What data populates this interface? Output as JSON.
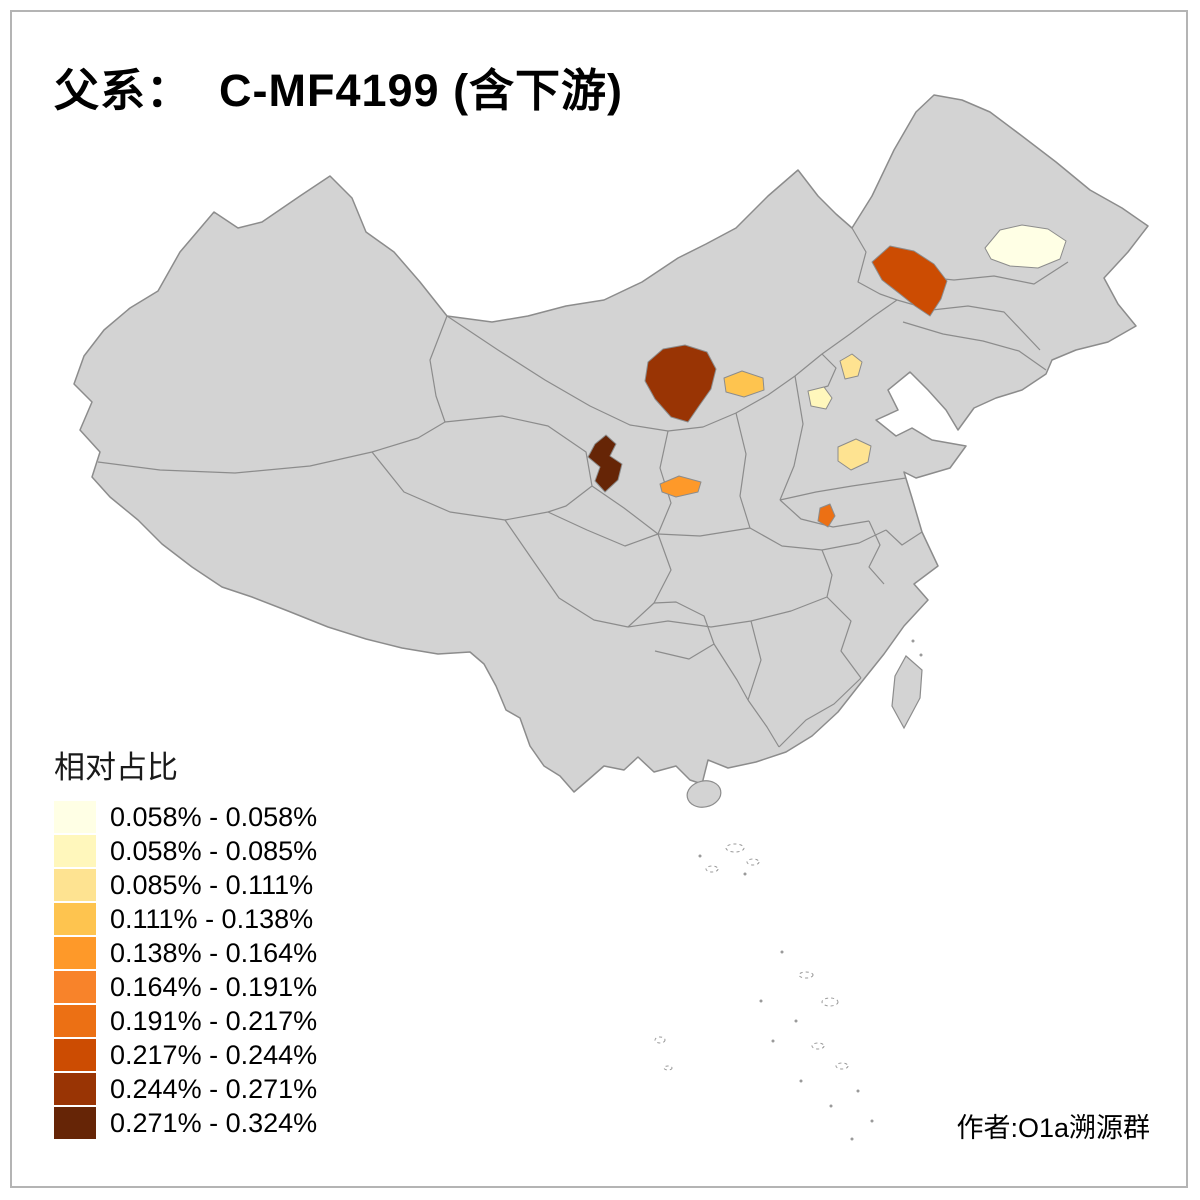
{
  "title": "父系：  C-MF4199 (含下游)",
  "attribution": "作者:O1a溯源群",
  "legend": {
    "title": "相对占比",
    "items": [
      {
        "label": "0.058% - 0.058%",
        "color": "#FFFFE5"
      },
      {
        "label": "0.058% - 0.085%",
        "color": "#FFF7BC"
      },
      {
        "label": "0.085% - 0.111%",
        "color": "#FEE391"
      },
      {
        "label": "0.111% - 0.138%",
        "color": "#FEC44F"
      },
      {
        "label": "0.138% - 0.164%",
        "color": "#FE9929"
      },
      {
        "label": "0.164% - 0.191%",
        "color": "#F8832A"
      },
      {
        "label": "0.191% - 0.217%",
        "color": "#EC7014"
      },
      {
        "label": "0.217% - 0.244%",
        "color": "#CC4C02"
      },
      {
        "label": "0.244% - 0.271%",
        "color": "#993404"
      },
      {
        "label": "0.271% - 0.324%",
        "color": "#662506"
      }
    ]
  },
  "map": {
    "base_fill": "#D3D3D3",
    "border_color": "#8C8C8C",
    "background": "#FFFFFF",
    "regions": [
      {
        "name": "region-west-heilongjiang",
        "range": "0.058% - 0.058%",
        "color": "#FFFFE5"
      },
      {
        "name": "region-east-inner-mongolia",
        "range": "0.217% - 0.244%",
        "color": "#CC4C02"
      },
      {
        "name": "region-central-inner-mongolia",
        "range": "0.244% - 0.271%",
        "color": "#993404"
      },
      {
        "name": "region-north-shanxi",
        "range": "0.111% - 0.138%",
        "color": "#FEC44F"
      },
      {
        "name": "region-beijing-area",
        "range": "0.085% - 0.111%",
        "color": "#FEE391"
      },
      {
        "name": "region-central-hebei",
        "range": "0.058% - 0.085%",
        "color": "#FFF7BC"
      },
      {
        "name": "region-central-shandong",
        "range": "0.085% - 0.111%",
        "color": "#FEE391"
      },
      {
        "name": "region-southeast-gansu",
        "range": "0.271% - 0.324%",
        "color": "#662506"
      },
      {
        "name": "region-west-shaanxi",
        "range": "0.138% - 0.164%",
        "color": "#FE9929"
      },
      {
        "name": "region-central-henan",
        "range": "0.191% - 0.217%",
        "color": "#EC7014"
      }
    ]
  }
}
